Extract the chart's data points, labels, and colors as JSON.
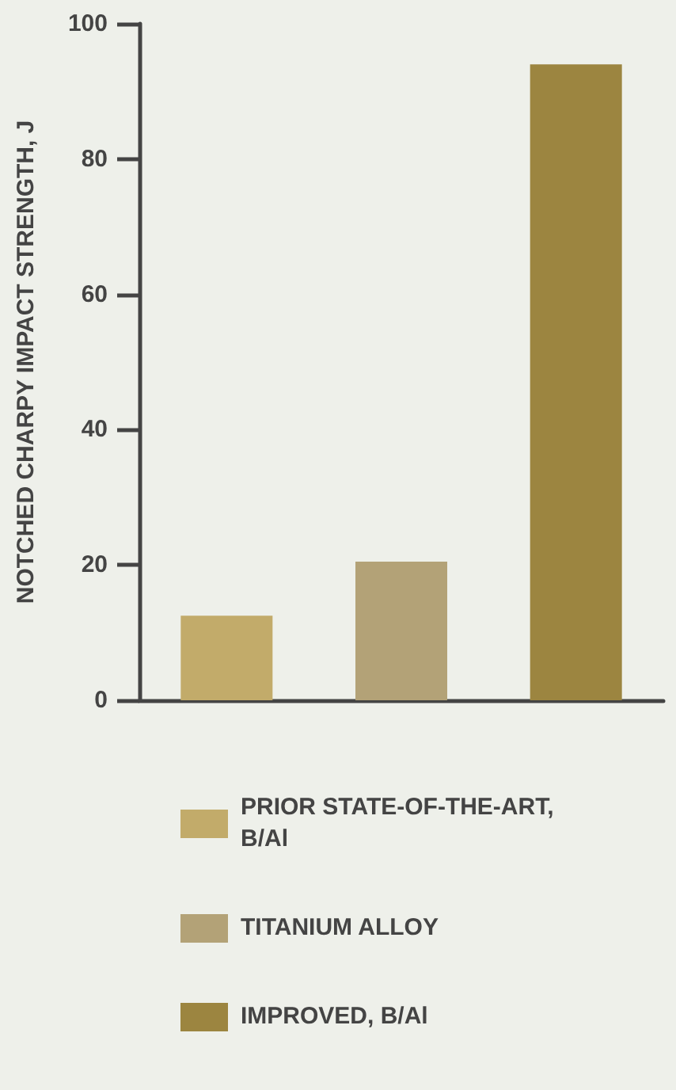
{
  "chart_data": {
    "type": "bar",
    "ylabel": "NOTCHED CHARPY IMPACT STRENGTH, J",
    "categories": [
      null,
      null,
      null
    ],
    "series": [
      {
        "name": "PRIOR STATE-OF-THE-ART, B/Al",
        "color": "#c2ab6a",
        "values": [
          12.5,
          null,
          null
        ]
      },
      {
        "name": "TITANIUM ALLOY",
        "color": "#b3a277",
        "values": [
          null,
          20.5,
          null
        ]
      },
      {
        "name": "IMPROVED, B/Al",
        "color": "#9c8540",
        "values": [
          null,
          null,
          94
        ]
      }
    ],
    "ylim": [
      0,
      100
    ],
    "yticks": [
      0,
      20,
      40,
      60,
      80,
      100
    ],
    "legend": "bottom"
  }
}
